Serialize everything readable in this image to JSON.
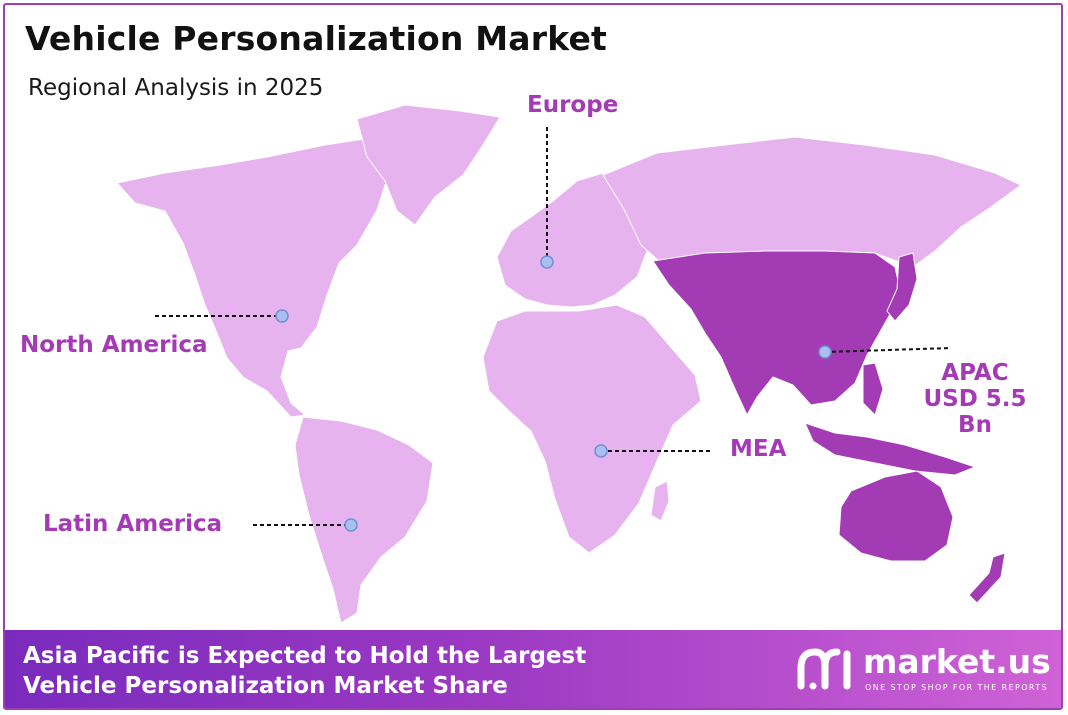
{
  "title": "Vehicle Personalization Market",
  "subtitle": "Regional Analysis in 2025",
  "colors": {
    "land": "#e6b3ee",
    "highlight": "#a23bb4",
    "accent_text": "#a43bb5",
    "marker": "#a9c0ee",
    "footer_start": "#7a2bbd",
    "footer_end": "#cf62d6"
  },
  "regions": {
    "europe": {
      "label": "Europe"
    },
    "north_america": {
      "label": "North America"
    },
    "latin_america": {
      "label": "Latin America"
    },
    "mea": {
      "label": "MEA"
    },
    "apac": {
      "label": "APAC",
      "value": "USD 5.5 Bn"
    }
  },
  "highlighted_region": "APAC",
  "footer": {
    "line1": "Asia Pacific is Expected to Hold the Largest",
    "line2": "Vehicle Personalization Market Share"
  },
  "logo": {
    "name": "market.us",
    "tagline": "ONE STOP SHOP FOR THE REPORTS"
  }
}
